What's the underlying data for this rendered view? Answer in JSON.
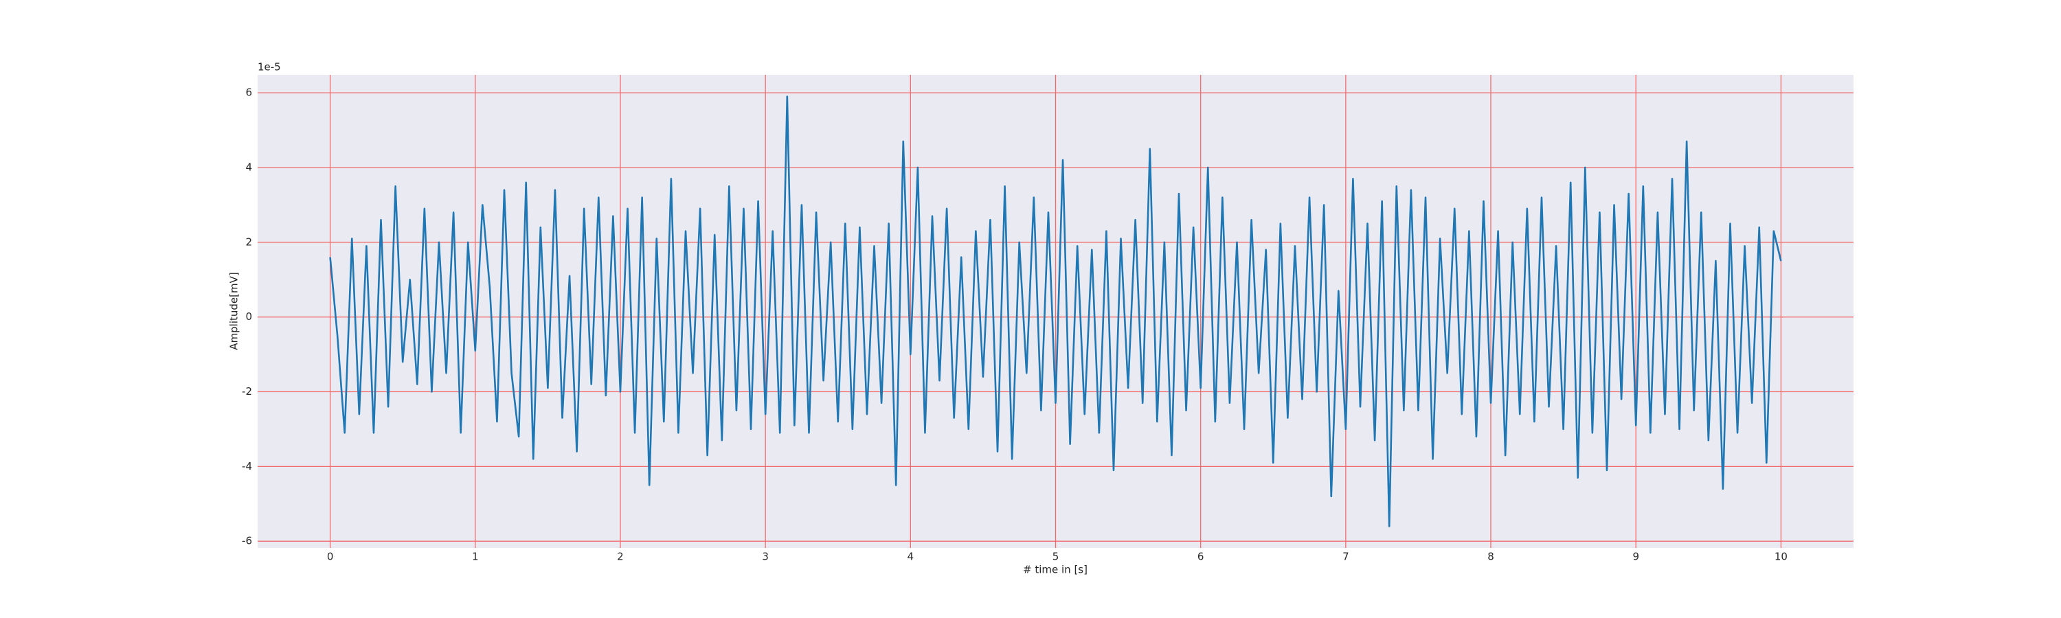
{
  "chart_data": {
    "type": "line",
    "xlabel": "# time in [s]",
    "ylabel": "Amplitude[mV]",
    "y_offset_label": "1e-5",
    "color": "#1f77b4",
    "background": "#eaeaf2",
    "grid": true,
    "grid_color": "#f26b6b",
    "xlim": [
      -0.5,
      10.5
    ],
    "xticks": [
      0,
      1,
      2,
      3,
      4,
      5,
      6,
      7,
      8,
      9,
      10
    ],
    "ylim": [
      -6.18,
      6.48
    ],
    "yticks": [
      -6,
      -4,
      -2,
      0,
      2,
      4,
      6
    ],
    "x": [
      0,
      0.05,
      0.1,
      0.15,
      0.2,
      0.25,
      0.3,
      0.35,
      0.4,
      0.45,
      0.5,
      0.55,
      0.6,
      0.65,
      0.7,
      0.75,
      0.8,
      0.85,
      0.9,
      0.95,
      1,
      1.05,
      1.1,
      1.15,
      1.2,
      1.25,
      1.3,
      1.35,
      1.4,
      1.45,
      1.5,
      1.55,
      1.6,
      1.65,
      1.7,
      1.75,
      1.8,
      1.85,
      1.9,
      1.95,
      2,
      2.05,
      2.1,
      2.15,
      2.2,
      2.25,
      2.3,
      2.35,
      2.4,
      2.45,
      2.5,
      2.55,
      2.6,
      2.65,
      2.7,
      2.75,
      2.8,
      2.85,
      2.9,
      2.95,
      3,
      3.05,
      3.1,
      3.15,
      3.2,
      3.25,
      3.3,
      3.35,
      3.4,
      3.45,
      3.5,
      3.55,
      3.6,
      3.65,
      3.7,
      3.75,
      3.8,
      3.85,
      3.9,
      3.95,
      4,
      4.05,
      4.1,
      4.15,
      4.2,
      4.25,
      4.3,
      4.35,
      4.4,
      4.45,
      4.5,
      4.55,
      4.6,
      4.65,
      4.7,
      4.75,
      4.8,
      4.85,
      4.9,
      4.95,
      5,
      5.05,
      5.1,
      5.15,
      5.2,
      5.25,
      5.3,
      5.35,
      5.4,
      5.45,
      5.5,
      5.55,
      5.6,
      5.65,
      5.7,
      5.75,
      5.8,
      5.85,
      5.9,
      5.95,
      6,
      6.05,
      6.1,
      6.15,
      6.2,
      6.25,
      6.3,
      6.35,
      6.4,
      6.45,
      6.5,
      6.55,
      6.6,
      6.65,
      6.7,
      6.75,
      6.8,
      6.85,
      6.9,
      6.95,
      7,
      7.05,
      7.1,
      7.15,
      7.2,
      7.25,
      7.3,
      7.35,
      7.4,
      7.45,
      7.5,
      7.55,
      7.6,
      7.65,
      7.7,
      7.75,
      7.8,
      7.85,
      7.9,
      7.95,
      8,
      8.05,
      8.1,
      8.15,
      8.2,
      8.25,
      8.3,
      8.35,
      8.4,
      8.45,
      8.5,
      8.55,
      8.6,
      8.65,
      8.7,
      8.75,
      8.8,
      8.85,
      8.9,
      8.95,
      9,
      9.05,
      9.1,
      9.15,
      9.2,
      9.25,
      9.3,
      9.35,
      9.4,
      9.45,
      9.5,
      9.55,
      9.6,
      9.65,
      9.7,
      9.75,
      9.8,
      9.85,
      9.9,
      9.95,
      10
    ],
    "values": [
      1.6,
      -0.5,
      -3.1,
      2.1,
      -2.6,
      1.9,
      -3.1,
      2.6,
      -2.4,
      3.5,
      -1.2,
      1.0,
      -1.8,
      2.9,
      -2.0,
      2.0,
      -1.5,
      2.8,
      -3.1,
      2.0,
      -0.9,
      3.0,
      0.8,
      -2.8,
      3.4,
      -1.5,
      -3.2,
      3.6,
      -3.8,
      2.4,
      -1.9,
      3.4,
      -2.7,
      1.1,
      -3.6,
      2.9,
      -1.8,
      3.2,
      -2.1,
      2.7,
      -2.0,
      2.9,
      -3.1,
      3.2,
      -4.5,
      2.1,
      -2.8,
      3.7,
      -3.1,
      2.3,
      -1.5,
      2.9,
      -3.7,
      2.2,
      -3.3,
      3.5,
      -2.5,
      2.9,
      -3.0,
      3.1,
      -2.6,
      2.3,
      -3.1,
      5.9,
      -2.9,
      3.0,
      -3.1,
      2.8,
      -1.7,
      2.0,
      -2.8,
      2.5,
      -3.0,
      2.4,
      -2.6,
      1.9,
      -2.3,
      2.5,
      -4.5,
      4.7,
      -1.0,
      4.0,
      -3.1,
      2.7,
      -1.7,
      2.9,
      -2.7,
      1.6,
      -3.0,
      2.3,
      -1.6,
      2.6,
      -3.6,
      3.5,
      -3.8,
      2.0,
      -1.5,
      3.2,
      -2.5,
      2.8,
      -2.3,
      4.2,
      -3.4,
      1.9,
      -2.6,
      1.8,
      -3.1,
      2.3,
      -4.1,
      2.1,
      -1.9,
      2.6,
      -2.3,
      4.5,
      -2.8,
      2.0,
      -3.7,
      3.3,
      -2.5,
      2.4,
      -1.9,
      4.0,
      -2.8,
      3.2,
      -2.3,
      2.0,
      -3.0,
      2.6,
      -1.5,
      1.8,
      -3.9,
      2.5,
      -2.7,
      1.9,
      -2.2,
      3.2,
      -2.0,
      3.0,
      -4.8,
      0.7,
      -3.0,
      3.7,
      -2.4,
      2.5,
      -3.3,
      3.1,
      -5.6,
      3.5,
      -2.5,
      3.4,
      -2.5,
      3.2,
      -3.8,
      2.1,
      -1.5,
      2.9,
      -2.6,
      2.3,
      -3.2,
      3.1,
      -2.3,
      2.3,
      -3.7,
      2.0,
      -2.6,
      2.9,
      -2.8,
      3.2,
      -2.4,
      1.9,
      -3.0,
      3.6,
      -4.3,
      4.0,
      -3.1,
      2.8,
      -4.1,
      3.0,
      -2.2,
      3.3,
      -2.9,
      3.5,
      -3.1,
      2.8,
      -2.6,
      3.7,
      -3.0,
      4.7,
      -2.5,
      2.8,
      -3.3,
      1.5,
      -4.6,
      2.5,
      -3.1,
      1.9,
      -2.3,
      2.4,
      -3.9,
      2.3,
      1.5
    ]
  }
}
